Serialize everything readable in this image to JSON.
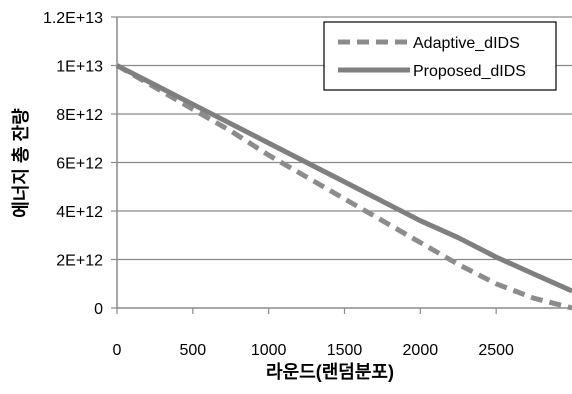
{
  "chart_data": {
    "type": "line",
    "title": "",
    "xlabel": "라운드(랜덤분포)",
    "ylabel": "에너지 총 잔량",
    "xlim": [
      0,
      3000
    ],
    "ylim": [
      0,
      12000000000000
    ],
    "x_ticks": [
      0,
      500,
      1000,
      1500,
      2000,
      2500
    ],
    "x_tick_labels": [
      "0",
      "500",
      "1000",
      "1500",
      "2000",
      "2500"
    ],
    "y_ticks": [
      0,
      2000000000000,
      4000000000000,
      6000000000000,
      8000000000000,
      10000000000000,
      12000000000000
    ],
    "y_tick_labels": [
      "0",
      "2E+12",
      "4E+12",
      "6E+12",
      "8E+12",
      "1E+13",
      "1.2E+13"
    ],
    "grid": "horizontal",
    "legend_position": "top-right",
    "series": [
      {
        "name": "Adaptive_dIDS",
        "color": "#8c8c8c",
        "style": "dashed",
        "x": [
          0,
          250,
          500,
          750,
          1000,
          1250,
          1500,
          1750,
          2000,
          2250,
          2500,
          2750,
          3000
        ],
        "y": [
          10000000000000,
          9100000000000,
          8200000000000,
          7300000000000,
          6300000000000,
          5400000000000,
          4500000000000,
          3600000000000,
          2700000000000,
          1800000000000,
          1000000000000,
          400000000000,
          0
        ]
      },
      {
        "name": "Proposed_dIDS",
        "color": "#7f7f7f",
        "style": "solid",
        "x": [
          0,
          250,
          500,
          750,
          1000,
          1250,
          1500,
          1750,
          2000,
          2250,
          2500,
          2750,
          3000
        ],
        "y": [
          10000000000000,
          9200000000000,
          8400000000000,
          7600000000000,
          6800000000000,
          6000000000000,
          5200000000000,
          4400000000000,
          3600000000000,
          2900000000000,
          2100000000000,
          1400000000000,
          700000000000
        ]
      }
    ]
  }
}
